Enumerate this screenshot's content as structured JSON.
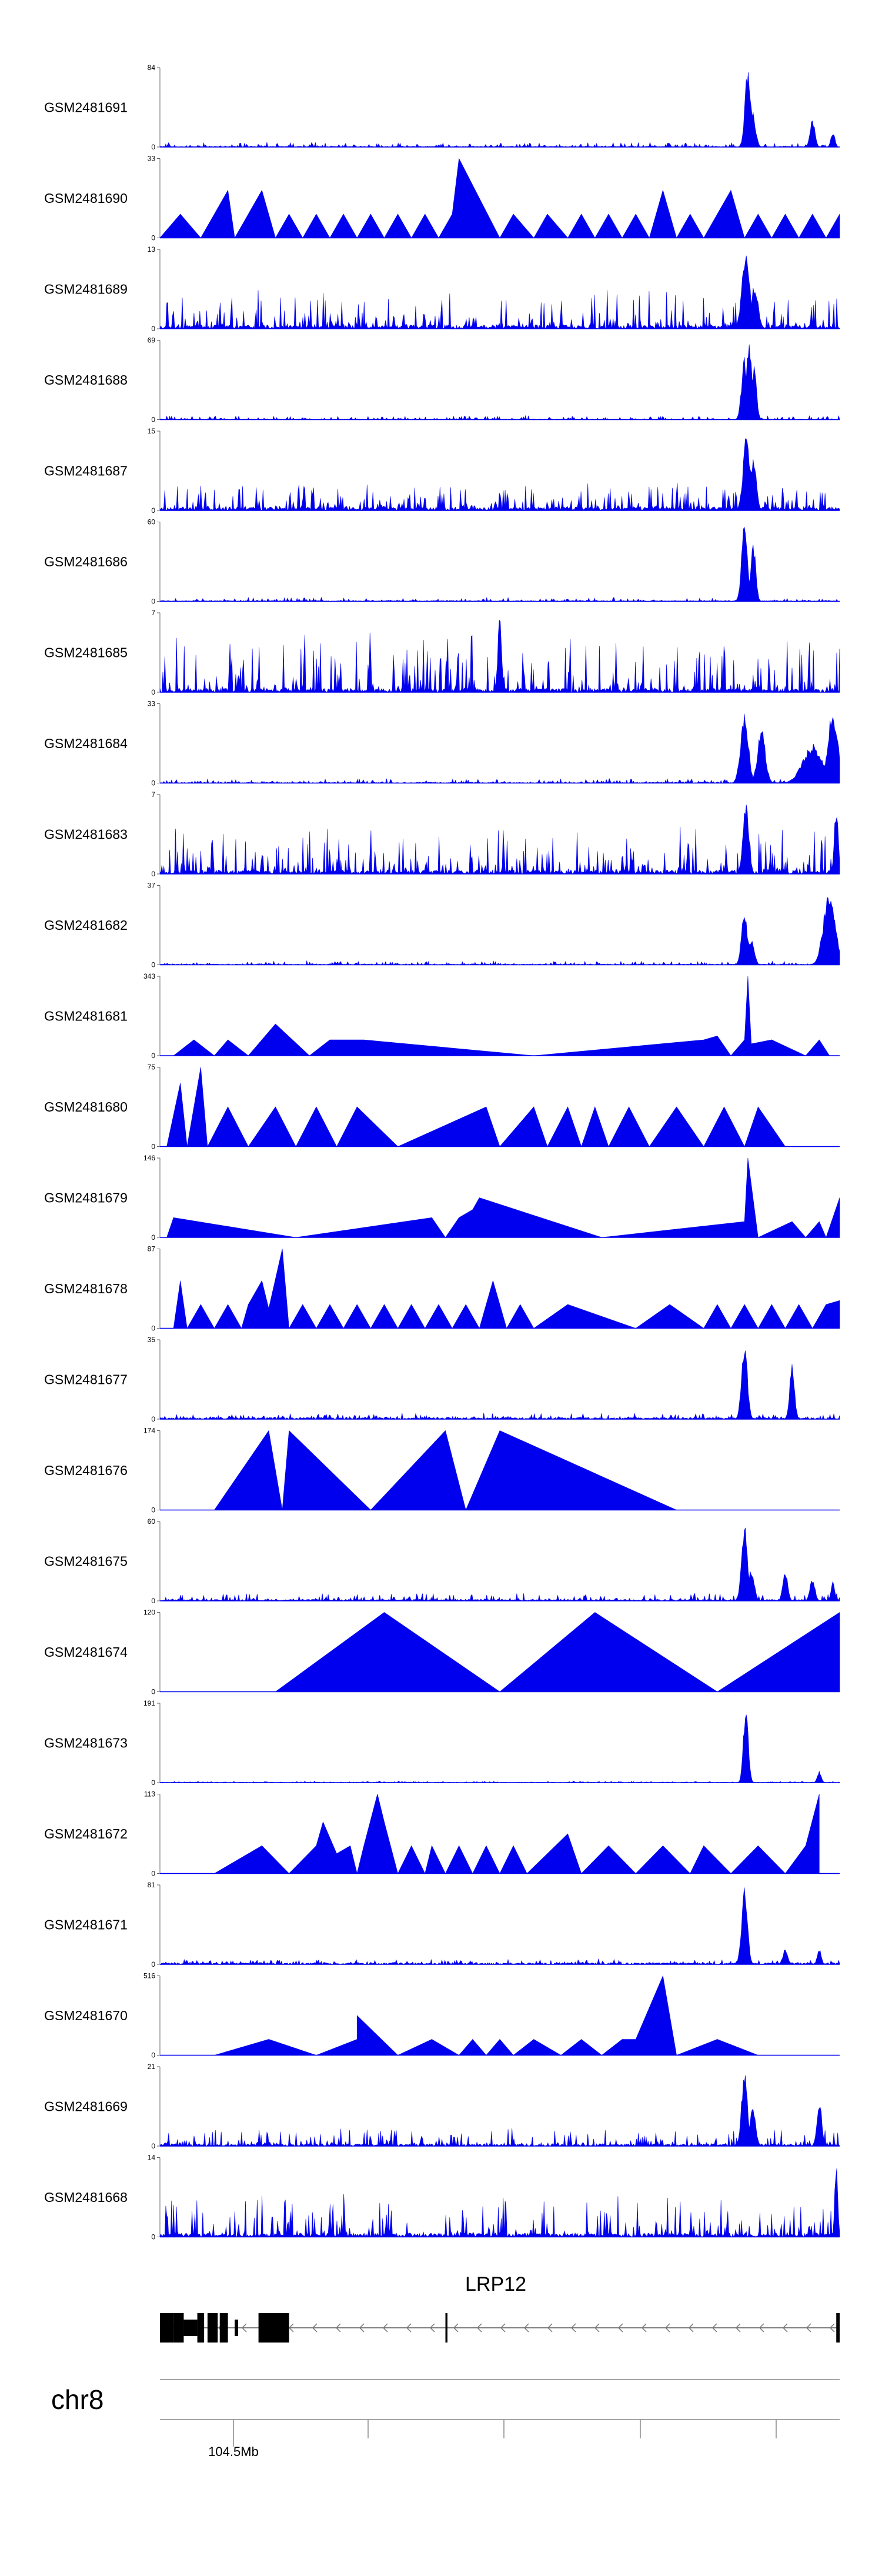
{
  "figure": {
    "chromosome": "chr8",
    "gene": "LRP12"
  },
  "chart_data": {
    "type": "area",
    "colors": {
      "signal": "#0000ee",
      "gene": "#000000",
      "axis": "#666666"
    },
    "x_axis": {
      "tick_label": "104.5Mb",
      "labeled_tick_index": 0,
      "tick_count": 5
    },
    "track_domain": [
      0,
      1
    ],
    "tracks": [
      {
        "name": "GSM2481691",
        "ymax": 84,
        "style": "dense",
        "noise": 0.05,
        "base": 0.01,
        "seed": 11,
        "peaks": [
          [
            0.865,
            0.006,
            1.0
          ],
          [
            0.872,
            0.006,
            0.45
          ],
          [
            0.96,
            0.005,
            0.35
          ],
          [
            0.99,
            0.004,
            0.2
          ]
        ]
      },
      {
        "name": "GSM2481690",
        "ymax": 33,
        "style": "sparse",
        "x": [
          0,
          0.03,
          0.06,
          0.08,
          0.1,
          0.11,
          0.13,
          0.15,
          0.17,
          0.19,
          0.21,
          0.23,
          0.25,
          0.27,
          0.29,
          0.31,
          0.33,
          0.35,
          0.37,
          0.39,
          0.41,
          0.43,
          0.44,
          0.5,
          0.52,
          0.55,
          0.57,
          0.6,
          0.62,
          0.64,
          0.66,
          0.68,
          0.7,
          0.72,
          0.74,
          0.76,
          0.78,
          0.8,
          0.82,
          0.84,
          0.86,
          0.88,
          0.9,
          0.92,
          0.94,
          0.96,
          0.98,
          1
        ],
        "y": [
          0,
          0.3,
          0,
          0.3,
          0.6,
          0,
          0.3,
          0.6,
          0,
          0.3,
          0,
          0.3,
          0,
          0.3,
          0,
          0.3,
          0,
          0.3,
          0,
          0.3,
          0,
          0.3,
          1.0,
          0,
          0.3,
          0,
          0.3,
          0,
          0.3,
          0,
          0.3,
          0,
          0.3,
          0,
          0.6,
          0,
          0.3,
          0,
          0.3,
          0.6,
          0,
          0.3,
          0,
          0.3,
          0,
          0.3,
          0,
          0.3
        ]
      },
      {
        "name": "GSM2481689",
        "ymax": 13,
        "style": "dense",
        "noise": 0.45,
        "base": 0.05,
        "seed": 23,
        "peaks": [
          [
            0.862,
            0.008,
            1.0
          ],
          [
            0.875,
            0.007,
            0.6
          ]
        ]
      },
      {
        "name": "GSM2481688",
        "ymax": 69,
        "style": "dense",
        "noise": 0.04,
        "base": 0.01,
        "seed": 31,
        "peaks": [
          [
            0.86,
            0.006,
            0.8
          ],
          [
            0.867,
            0.006,
            1.0
          ],
          [
            0.874,
            0.005,
            0.7
          ]
        ]
      },
      {
        "name": "GSM2481687",
        "ymax": 15,
        "style": "dense",
        "noise": 0.3,
        "base": 0.05,
        "seed": 37,
        "peaks": [
          [
            0.863,
            0.007,
            1.0
          ],
          [
            0.873,
            0.006,
            0.7
          ]
        ]
      },
      {
        "name": "GSM2481686",
        "ymax": 60,
        "style": "dense",
        "noise": 0.04,
        "base": 0.01,
        "seed": 41,
        "peaks": [
          [
            0.86,
            0.006,
            1.0
          ],
          [
            0.873,
            0.005,
            0.75
          ]
        ]
      },
      {
        "name": "GSM2481685",
        "ymax": 7,
        "style": "dense",
        "noise": 0.7,
        "base": 0.05,
        "seed": 43,
        "peaks": [
          [
            0.5,
            0.004,
            1.0
          ]
        ]
      },
      {
        "name": "GSM2481684",
        "ymax": 33,
        "style": "dense",
        "noise": 0.05,
        "base": 0.01,
        "seed": 47,
        "peaks": [
          [
            0.86,
            0.008,
            0.9
          ],
          [
            0.885,
            0.008,
            0.7
          ],
          [
            0.96,
            0.02,
            0.5
          ],
          [
            0.99,
            0.01,
            0.95
          ]
        ]
      },
      {
        "name": "GSM2481683",
        "ymax": 7,
        "style": "dense",
        "noise": 0.55,
        "base": 0.05,
        "seed": 53,
        "peaks": [
          [
            0.862,
            0.006,
            1.0
          ],
          [
            0.995,
            0.004,
            0.9
          ]
        ]
      },
      {
        "name": "GSM2481682",
        "ymax": 37,
        "style": "dense",
        "noise": 0.04,
        "base": 0.01,
        "seed": 59,
        "peaks": [
          [
            0.86,
            0.006,
            0.7
          ],
          [
            0.87,
            0.006,
            0.35
          ],
          [
            0.985,
            0.012,
            1.0
          ]
        ]
      },
      {
        "name": "GSM2481681",
        "ymax": 343,
        "style": "sparse",
        "x": [
          0.02,
          0.05,
          0.08,
          0.1,
          0.13,
          0.15,
          0.17,
          0.22,
          0.25,
          0.3,
          0.55,
          0.8,
          0.82,
          0.84,
          0.86,
          0.865,
          0.87,
          0.9,
          0.95,
          0.97,
          0.985
        ],
        "y": [
          0,
          0.2,
          0,
          0.2,
          0,
          0.2,
          0.4,
          0,
          0.2,
          0.2,
          0,
          0.2,
          0.25,
          0,
          0.2,
          1.0,
          0.15,
          0.2,
          0,
          0.2,
          0
        ]
      },
      {
        "name": "GSM2481680",
        "ymax": 75,
        "style": "sparse",
        "x": [
          0.01,
          0.03,
          0.04,
          0.06,
          0.07,
          0.1,
          0.13,
          0.17,
          0.2,
          0.23,
          0.26,
          0.29,
          0.35,
          0.48,
          0.5,
          0.55,
          0.57,
          0.6,
          0.62,
          0.64,
          0.66,
          0.69,
          0.72,
          0.76,
          0.8,
          0.83,
          0.86,
          0.88,
          0.92,
          0.96
        ],
        "y": [
          0,
          0.8,
          0,
          1.0,
          0,
          0.5,
          0,
          0.5,
          0,
          0.5,
          0,
          0.5,
          0,
          0.5,
          0,
          0.5,
          0,
          0.5,
          0,
          0.5,
          0,
          0.5,
          0,
          0.5,
          0,
          0.5,
          0,
          0.5,
          0,
          0
        ]
      },
      {
        "name": "GSM2481679",
        "ymax": 146,
        "style": "sparse",
        "x": [
          0.01,
          0.02,
          0.2,
          0.4,
          0.42,
          0.44,
          0.46,
          0.46,
          0.47,
          0.65,
          0.86,
          0.865,
          0.88,
          0.93,
          0.95,
          0.97,
          0.98,
          1.0
        ],
        "y": [
          0,
          0.25,
          0,
          0.25,
          0,
          0.25,
          0.35,
          0.35,
          0.5,
          0,
          0.2,
          1.0,
          0,
          0.2,
          0,
          0.2,
          0,
          0.5
        ]
      },
      {
        "name": "GSM2481678",
        "ymax": 87,
        "style": "sparse",
        "x": [
          0.02,
          0.03,
          0.04,
          0.06,
          0.08,
          0.1,
          0.12,
          0.13,
          0.15,
          0.16,
          0.18,
          0.19,
          0.21,
          0.23,
          0.25,
          0.27,
          0.29,
          0.31,
          0.33,
          0.35,
          0.37,
          0.39,
          0.41,
          0.43,
          0.45,
          0.47,
          0.49,
          0.51,
          0.53,
          0.55,
          0.6,
          0.7,
          0.75,
          0.8,
          0.82,
          0.84,
          0.86,
          0.88,
          0.9,
          0.92,
          0.94,
          0.96,
          0.98,
          1.0
        ],
        "y": [
          0,
          0.6,
          0,
          0.3,
          0,
          0.3,
          0,
          0.3,
          0.6,
          0.25,
          1.0,
          0,
          0.3,
          0,
          0.3,
          0,
          0.3,
          0,
          0.3,
          0,
          0.3,
          0,
          0.3,
          0,
          0.3,
          0,
          0.6,
          0,
          0.3,
          0,
          0.3,
          0,
          0.3,
          0,
          0.3,
          0,
          0.3,
          0,
          0.3,
          0,
          0.3,
          0,
          0.3,
          0.35
        ]
      },
      {
        "name": "GSM2481677",
        "ymax": 35,
        "style": "dense",
        "noise": 0.06,
        "base": 0.02,
        "seed": 61,
        "peaks": [
          [
            0.86,
            0.006,
            1.0
          ],
          [
            0.93,
            0.005,
            0.7
          ]
        ]
      },
      {
        "name": "GSM2481676",
        "ymax": 174,
        "style": "sparse",
        "x": [
          0.08,
          0.16,
          0.18,
          0.19,
          0.31,
          0.42,
          0.45,
          0.5,
          0.76
        ],
        "y": [
          0,
          1.0,
          0,
          1.0,
          0,
          1.0,
          0,
          1.0,
          0
        ]
      },
      {
        "name": "GSM2481675",
        "ymax": 60,
        "style": "dense",
        "noise": 0.08,
        "base": 0.02,
        "seed": 67,
        "peaks": [
          [
            0.86,
            0.006,
            1.0
          ],
          [
            0.87,
            0.006,
            0.4
          ],
          [
            0.92,
            0.005,
            0.4
          ],
          [
            0.96,
            0.005,
            0.3
          ],
          [
            0.99,
            0.004,
            0.25
          ]
        ]
      },
      {
        "name": "GSM2481674",
        "ymax": 120,
        "style": "sparse",
        "x": [
          0.17,
          0.33,
          0.5,
          0.64,
          0.82,
          1.0
        ],
        "y": [
          0,
          1.0,
          0,
          1.0,
          0,
          1.0
        ]
      },
      {
        "name": "GSM2481673",
        "ymax": 191,
        "style": "dense",
        "noise": 0.015,
        "base": 0.005,
        "seed": 71,
        "peaks": [
          [
            0.862,
            0.005,
            1.0
          ],
          [
            0.97,
            0.004,
            0.15
          ]
        ]
      },
      {
        "name": "GSM2481672",
        "ymax": 113,
        "style": "sparse",
        "x": [
          0.08,
          0.15,
          0.19,
          0.23,
          0.24,
          0.26,
          0.28,
          0.29,
          0.3,
          0.32,
          0.33,
          0.35,
          0.37,
          0.39,
          0.4,
          0.42,
          0.44,
          0.46,
          0.48,
          0.5,
          0.52,
          0.54,
          0.6,
          0.62,
          0.66,
          0.7,
          0.74,
          0.78,
          0.8,
          0.84,
          0.88,
          0.92,
          0.95,
          0.97
        ],
        "y": [
          0,
          0.35,
          0,
          0.35,
          0.65,
          0.25,
          0.35,
          0,
          0.35,
          1.0,
          0.65,
          0,
          0.35,
          0,
          0.35,
          0,
          0.35,
          0,
          0.35,
          0,
          0.35,
          0,
          0.5,
          0,
          0.35,
          0,
          0.35,
          0,
          0.35,
          0,
          0.35,
          0,
          0.35,
          1.0
        ]
      },
      {
        "name": "GSM2481671",
        "ymax": 81,
        "style": "dense",
        "noise": 0.05,
        "base": 0.02,
        "seed": 73,
        "peaks": [
          [
            0.86,
            0.006,
            1.0
          ],
          [
            0.92,
            0.005,
            0.2
          ],
          [
            0.97,
            0.004,
            0.2
          ]
        ]
      },
      {
        "name": "GSM2481670",
        "ymax": 516,
        "style": "sparse",
        "x": [
          0.08,
          0.16,
          0.23,
          0.29,
          0.29,
          0.35,
          0.4,
          0.44,
          0.46,
          0.48,
          0.5,
          0.52,
          0.55,
          0.59,
          0.62,
          0.65,
          0.68,
          0.7,
          0.74,
          0.76,
          0.82,
          0.88
        ],
        "y": [
          0,
          0.2,
          0,
          0.2,
          0.5,
          0,
          0.2,
          0,
          0.2,
          0,
          0.2,
          0,
          0.2,
          0,
          0.2,
          0,
          0.2,
          0.2,
          1.0,
          0,
          0.2,
          0
        ]
      },
      {
        "name": "GSM2481669",
        "ymax": 21,
        "style": "dense",
        "noise": 0.2,
        "base": 0.03,
        "seed": 79,
        "peaks": [
          [
            0.86,
            0.006,
            1.0
          ],
          [
            0.872,
            0.006,
            0.5
          ],
          [
            0.97,
            0.005,
            0.6
          ]
        ]
      },
      {
        "name": "GSM2481668",
        "ymax": 14,
        "style": "dense",
        "noise": 0.5,
        "base": 0.05,
        "seed": 83,
        "peaks": [
          [
            0.995,
            0.003,
            1.0
          ]
        ]
      }
    ],
    "gene_model": {
      "strand": "minus",
      "span": [
        0.0,
        1.0
      ],
      "exons": [
        [
          0.0,
          0.02,
          1.0
        ],
        [
          0.02,
          0.035,
          1.0
        ],
        [
          0.035,
          0.055,
          0.5
        ],
        [
          0.055,
          0.065,
          1.0
        ],
        [
          0.07,
          0.085,
          1.0
        ],
        [
          0.088,
          0.1,
          1.0
        ],
        [
          0.11,
          0.115,
          0.5
        ],
        [
          0.145,
          0.19,
          1.0
        ],
        [
          0.42,
          0.423,
          1.0
        ],
        [
          0.995,
          1.0,
          1.0
        ]
      ]
    }
  }
}
